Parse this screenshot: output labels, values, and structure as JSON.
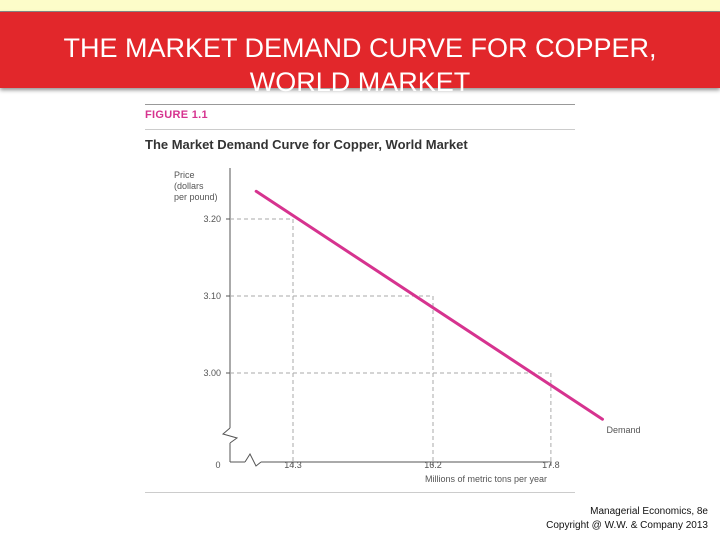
{
  "slide": {
    "title_line1": "THE MARKET DEMAND CURVE FOR COPPER,",
    "title_line2": "WORLD MARKET",
    "footer_line1": "Managerial Economics, 8e",
    "footer_line2": "Copyright @ W.W. & Company 2013"
  },
  "figure": {
    "label": "FIGURE 1.1",
    "title": "The Market Demand Curve for Copper, World Market"
  },
  "colors": {
    "banner": "#e2272b",
    "curve": "#d6338f"
  },
  "chart_data": {
    "type": "line",
    "title": "The Market Demand Curve for Copper, World Market",
    "ylabel_lines": [
      "Price",
      "(dollars",
      "per pound)"
    ],
    "xlabel": "Millions of metric tons per year",
    "origin_label": "0",
    "y_ticks": [
      {
        "value": 3.2,
        "label": "3.20"
      },
      {
        "value": 3.1,
        "label": "3.10"
      },
      {
        "value": 3.0,
        "label": "3.00"
      }
    ],
    "x_ticks": [
      {
        "value": 14.3,
        "label": "14.3"
      },
      {
        "value": 16.2,
        "label": "16.2"
      },
      {
        "value": 17.8,
        "label": "17.8"
      }
    ],
    "reference_points": [
      {
        "x": 14.3,
        "y": 3.2
      },
      {
        "x": 16.2,
        "y": 3.1
      },
      {
        "x": 17.8,
        "y": 3.0
      }
    ],
    "series": [
      {
        "name": "Demand",
        "x": [
          13.8,
          18.5
        ],
        "y": [
          3.236,
          2.94
        ]
      }
    ],
    "axis_breaks": true,
    "grid": false
  }
}
